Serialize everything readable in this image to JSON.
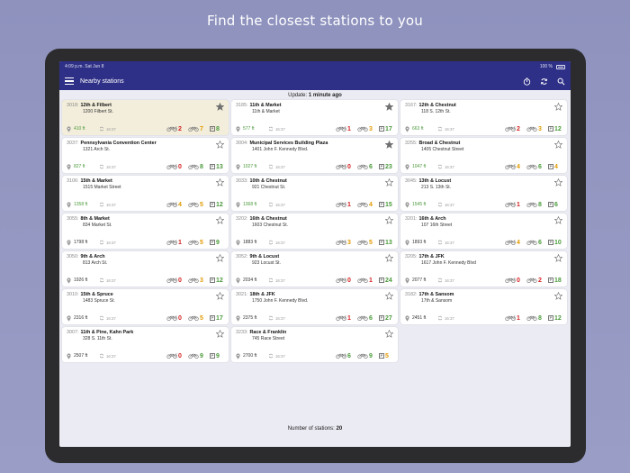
{
  "headline": "Find the closest stations to you",
  "status_bar": {
    "time": "4:09 p.m.",
    "date": "Sat Jun 8",
    "battery": "100 %"
  },
  "nav": {
    "title": "Nearby stations"
  },
  "update": {
    "label": "Update:",
    "value": "1 minute ago"
  },
  "footer": {
    "label": "Number of stations:",
    "count": "20"
  },
  "colors": {
    "red": "#d42020",
    "orange": "#e29a00",
    "green": "#4a9a3a",
    "nav": "#2e3087"
  },
  "stations": [
    {
      "id": "3018:",
      "name": "12th & Filbert",
      "addr": "1200 Filbert St.",
      "dist": "410 ft",
      "time": "16:37",
      "classic": "",
      "ebike": "2",
      "ebike_c": "red",
      "bikes": "7",
      "bikes_c": "orange",
      "docks": "8",
      "docks_c": "green",
      "fav": true,
      "highlight": true
    },
    {
      "id": "3185:",
      "name": "11th & Market",
      "addr": "11th & Market",
      "dist": "577 ft",
      "time": "16:37",
      "ebike": "1",
      "ebike_c": "red",
      "bikes": "3",
      "bikes_c": "orange",
      "docks": "17",
      "docks_c": "green",
      "fav": true
    },
    {
      "id": "3167:",
      "name": "12th & Chestnut",
      "addr": "118 S. 12th St.",
      "dist": "663 ft",
      "time": "16:37",
      "ebike": "2",
      "ebike_c": "red",
      "bikes": "3",
      "bikes_c": "orange",
      "docks": "12",
      "docks_c": "green",
      "fav": false
    },
    {
      "id": "3037:",
      "name": "Pennsylvania Convention Center",
      "addr": "1321 Arch St.",
      "dist": "827 ft",
      "time": "16:37",
      "ebike": "0",
      "ebike_c": "red",
      "bikes": "8",
      "bikes_c": "green",
      "docks": "13",
      "docks_c": "green",
      "fav": false
    },
    {
      "id": "3004:",
      "name": "Municipal Services Building Plaza",
      "addr": "1401 John F. Kennedy Blvd.",
      "dist": "1027 ft",
      "time": "16:37",
      "ebike": "0",
      "ebike_c": "red",
      "bikes": "6",
      "bikes_c": "green",
      "docks": "23",
      "docks_c": "green",
      "fav": true
    },
    {
      "id": "3255:",
      "name": "Broad & Chestnut",
      "addr": "1405 Chestnut Street",
      "dist": "1047 ft",
      "time": "16:37",
      "ebike": "4",
      "ebike_c": "orange",
      "bikes": "6",
      "bikes_c": "green",
      "docks": "4",
      "docks_c": "orange",
      "fav": false
    },
    {
      "id": "3106:",
      "name": "15th & Market",
      "addr": "1515 Market Street",
      "dist": "1358 ft",
      "time": "16:37",
      "ebike": "4",
      "ebike_c": "orange",
      "bikes": "5",
      "bikes_c": "orange",
      "docks": "12",
      "docks_c": "green",
      "fav": false
    },
    {
      "id": "3033:",
      "name": "10th & Chestnut",
      "addr": "921 Chestnut St.",
      "dist": "1368 ft",
      "time": "16:37",
      "ebike": "1",
      "ebike_c": "red",
      "bikes": "4",
      "bikes_c": "orange",
      "docks": "15",
      "docks_c": "green",
      "fav": false
    },
    {
      "id": "3045:",
      "name": "13th & Locust",
      "addr": "213 S. 13th St.",
      "dist": "1545 ft",
      "time": "16:37",
      "ebike": "1",
      "ebike_c": "red",
      "bikes": "8",
      "bikes_c": "green",
      "docks": "6",
      "docks_c": "green",
      "fav": false
    },
    {
      "id": "3055:",
      "name": "8th & Market",
      "addr": "834 Market St.",
      "dist": "1798 ft",
      "time": "16:37",
      "ebike": "1",
      "ebike_c": "red",
      "bikes": "5",
      "bikes_c": "orange",
      "docks": "9",
      "docks_c": "green",
      "fav": false
    },
    {
      "id": "3202:",
      "name": "16th & Chestnut",
      "addr": "1603 Chestnut St.",
      "dist": "1883 ft",
      "time": "16:37",
      "ebike": "3",
      "ebike_c": "orange",
      "bikes": "5",
      "bikes_c": "orange",
      "docks": "13",
      "docks_c": "green",
      "fav": false
    },
    {
      "id": "3201:",
      "name": "16th & Arch",
      "addr": "107 16th Street",
      "dist": "1893 ft",
      "time": "16:37",
      "ebike": "4",
      "ebike_c": "orange",
      "bikes": "6",
      "bikes_c": "green",
      "docks": "10",
      "docks_c": "green",
      "fav": false
    },
    {
      "id": "3050:",
      "name": "9th & Arch",
      "addr": "813 Arch St.",
      "dist": "1926 ft",
      "time": "16:37",
      "ebike": "0",
      "ebike_c": "red",
      "bikes": "3",
      "bikes_c": "orange",
      "docks": "12",
      "docks_c": "green",
      "fav": false
    },
    {
      "id": "3052:",
      "name": "9th & Locust",
      "addr": "923 Locust St.",
      "dist": "2034 ft",
      "time": "16:37",
      "ebike": "0",
      "ebike_c": "red",
      "bikes": "1",
      "bikes_c": "red",
      "docks": "24",
      "docks_c": "green",
      "fav": false
    },
    {
      "id": "3205:",
      "name": "17th & JFK",
      "addr": "1617 John F. Kennedy Blvd",
      "dist": "2077 ft",
      "time": "16:37",
      "ebike": "0",
      "ebike_c": "red",
      "bikes": "2",
      "bikes_c": "red",
      "docks": "18",
      "docks_c": "green",
      "fav": false
    },
    {
      "id": "3010:",
      "name": "15th & Spruce",
      "addr": "1483 Spruce St.",
      "dist": "2316 ft",
      "time": "16:37",
      "ebike": "0",
      "ebike_c": "red",
      "bikes": "5",
      "bikes_c": "orange",
      "docks": "17",
      "docks_c": "green",
      "fav": false
    },
    {
      "id": "3021:",
      "name": "18th & JFK",
      "addr": "1750 John F. Kennedy Blvd.",
      "dist": "2375 ft",
      "time": "16:37",
      "ebike": "1",
      "ebike_c": "red",
      "bikes": "6",
      "bikes_c": "green",
      "docks": "27",
      "docks_c": "green",
      "fav": false
    },
    {
      "id": "3182:",
      "name": "17th & Sansom",
      "addr": "17th & Sansom",
      "dist": "2451 ft",
      "time": "16:37",
      "ebike": "1",
      "ebike_c": "red",
      "bikes": "8",
      "bikes_c": "green",
      "docks": "12",
      "docks_c": "green",
      "fav": false
    },
    {
      "id": "3007:",
      "name": "11th & Pine, Kahn Park",
      "addr": "328 S. 11th St.",
      "dist": "2507 ft",
      "time": "16:37",
      "ebike": "0",
      "ebike_c": "red",
      "bikes": "9",
      "bikes_c": "green",
      "docks": "9",
      "docks_c": "green",
      "fav": false
    },
    {
      "id": "3233:",
      "name": "Race & Franklin",
      "addr": "745 Race Street",
      "dist": "2700 ft",
      "time": "16:37",
      "ebike": "6",
      "ebike_c": "green",
      "bikes": "9",
      "bikes_c": "green",
      "docks": "5",
      "docks_c": "orange",
      "fav": false
    }
  ]
}
